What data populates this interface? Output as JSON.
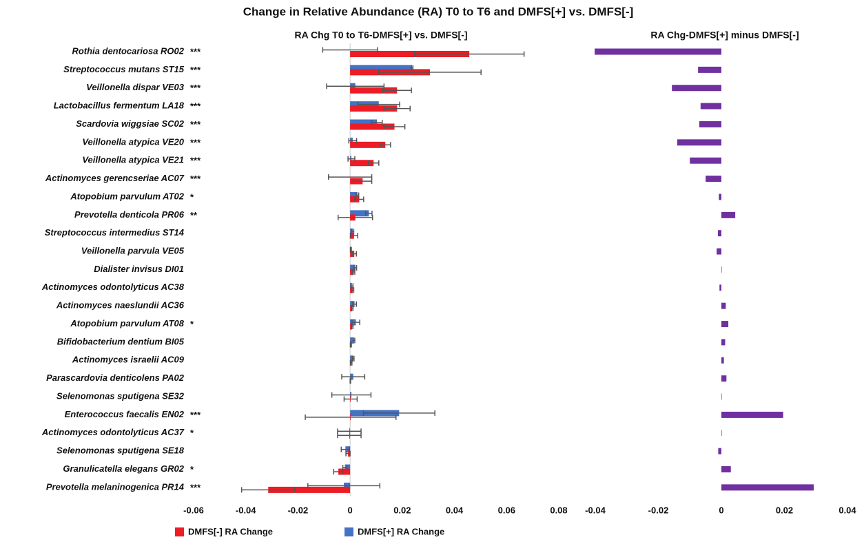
{
  "title": "Change in Relative Abundance (RA) T0 to T6 and DMFS[+] vs. DMFS[-]",
  "chart_data": [
    {
      "type": "hbar_error",
      "title": "RA Chg T0 to T6-DMFS[+] vs. DMFS[-]",
      "categories": [
        "Rothia dentocariosa RO02",
        "Streptococcus mutans ST15",
        "Veillonella dispar VE03",
        "Lactobacillus fermentum LA18",
        "Scardovia wiggsiae SC02",
        "Veillonella atypica VE20",
        "Veillonella atypica VE21",
        "Actinomyces gerencseriae AC07",
        "Atopobium parvulum AT02",
        "Prevotella denticola PR06",
        "Streptococcus intermedius ST14",
        "Veillonella parvula VE05",
        "Dialister invisus DI01",
        "Actinomyces odontolyticus AC38",
        "Actinomyces naeslundii AC36",
        "Atopobium parvulum AT08",
        "Bifidobacterium dentium BI05",
        "Actinomyces israelii AC09",
        "Parascardovia denticolens PA02",
        "Selenomonas sputigena SE32",
        "Enterococcus faecalis EN02",
        "Actinomyces odontolyticus AC37",
        "Selenomonas sputigena SE18",
        "Granulicatella elegans GR02",
        "Prevotella melaninogenica PR14"
      ],
      "annotations": [
        "***",
        "***",
        "***",
        "***",
        "***",
        "***",
        "***",
        "***",
        "*",
        "**",
        null,
        null,
        null,
        null,
        null,
        "*",
        null,
        null,
        null,
        null,
        "***",
        "*",
        null,
        "*",
        "***"
      ],
      "series": [
        {
          "name": "DMFS[-] RA Change",
          "color": "#ee1c25",
          "values": [
            0.0457,
            0.0306,
            0.018,
            0.018,
            0.017,
            0.0135,
            0.009,
            0.0048,
            0.0035,
            0.002,
            0.0015,
            0.0016,
            0.0014,
            0.001,
            0.0008,
            0.0008,
            0.0003,
            0.0004,
            0.0001,
            0.0002,
            0.0002,
            -0.0003,
            -0.0008,
            -0.0045,
            -0.0314
          ],
          "errors": [
            0.021,
            0.0196,
            0.0055,
            0.005,
            0.004,
            0.002,
            0.002,
            0.0035,
            0.0017,
            0.0066,
            0.0014,
            0.0008,
            0.0004,
            0.0004,
            0.0003,
            0.0003,
            0.0002,
            0.0003,
            0.0001,
            0.0025,
            0.0174,
            0.0045,
            0.0008,
            0.0018,
            0.0102
          ]
        },
        {
          "name": "DMFS[+] RA Change",
          "color": "#4472c4",
          "values": [
            0.0,
            0.0238,
            0.002,
            0.011,
            0.0103,
            0.001,
            0.0005,
            0.0,
            0.0028,
            0.0072,
            0.001,
            0.0003,
            0.002,
            0.0007,
            0.0017,
            0.0022,
            0.0015,
            0.0012,
            0.0012,
            0.0005,
            0.0188,
            -0.0003,
            -0.0018,
            -0.002,
            -0.0024
          ],
          "errors": [
            0.0105,
            0.0003,
            0.011,
            0.008,
            0.002,
            0.0015,
            0.0013,
            0.0083,
            0.0005,
            0.0012,
            0.0004,
            0.0002,
            0.0005,
            0.0004,
            0.0007,
            0.0015,
            0.0003,
            0.0003,
            0.0044,
            0.0075,
            0.0137,
            0.0045,
            0.0016,
            0.0008,
            0.0138
          ]
        }
      ],
      "xlim": [
        -0.06,
        0.08
      ],
      "xticks": [
        -0.06,
        -0.04,
        -0.02,
        0,
        0.02,
        0.04,
        0.06,
        0.08
      ],
      "legend": "bottom"
    },
    {
      "type": "hbar",
      "title": "RA Chg-DMFS[+] minus DMFS[-]",
      "color": "#7030a0",
      "values": [
        -0.0402,
        -0.0074,
        -0.0157,
        -0.0066,
        -0.007,
        -0.014,
        -0.01,
        -0.005,
        -0.0008,
        0.0044,
        -0.0011,
        -0.0015,
        0.0001,
        -0.0006,
        0.0014,
        0.0022,
        0.0012,
        0.0008,
        0.0016,
        0.0001,
        0.0196,
        0.0001,
        -0.001,
        0.003,
        0.0293
      ],
      "xlim": [
        -0.04,
        0.04
      ],
      "xticks": [
        -0.04,
        -0.02,
        0,
        0.02,
        0.04
      ]
    }
  ]
}
